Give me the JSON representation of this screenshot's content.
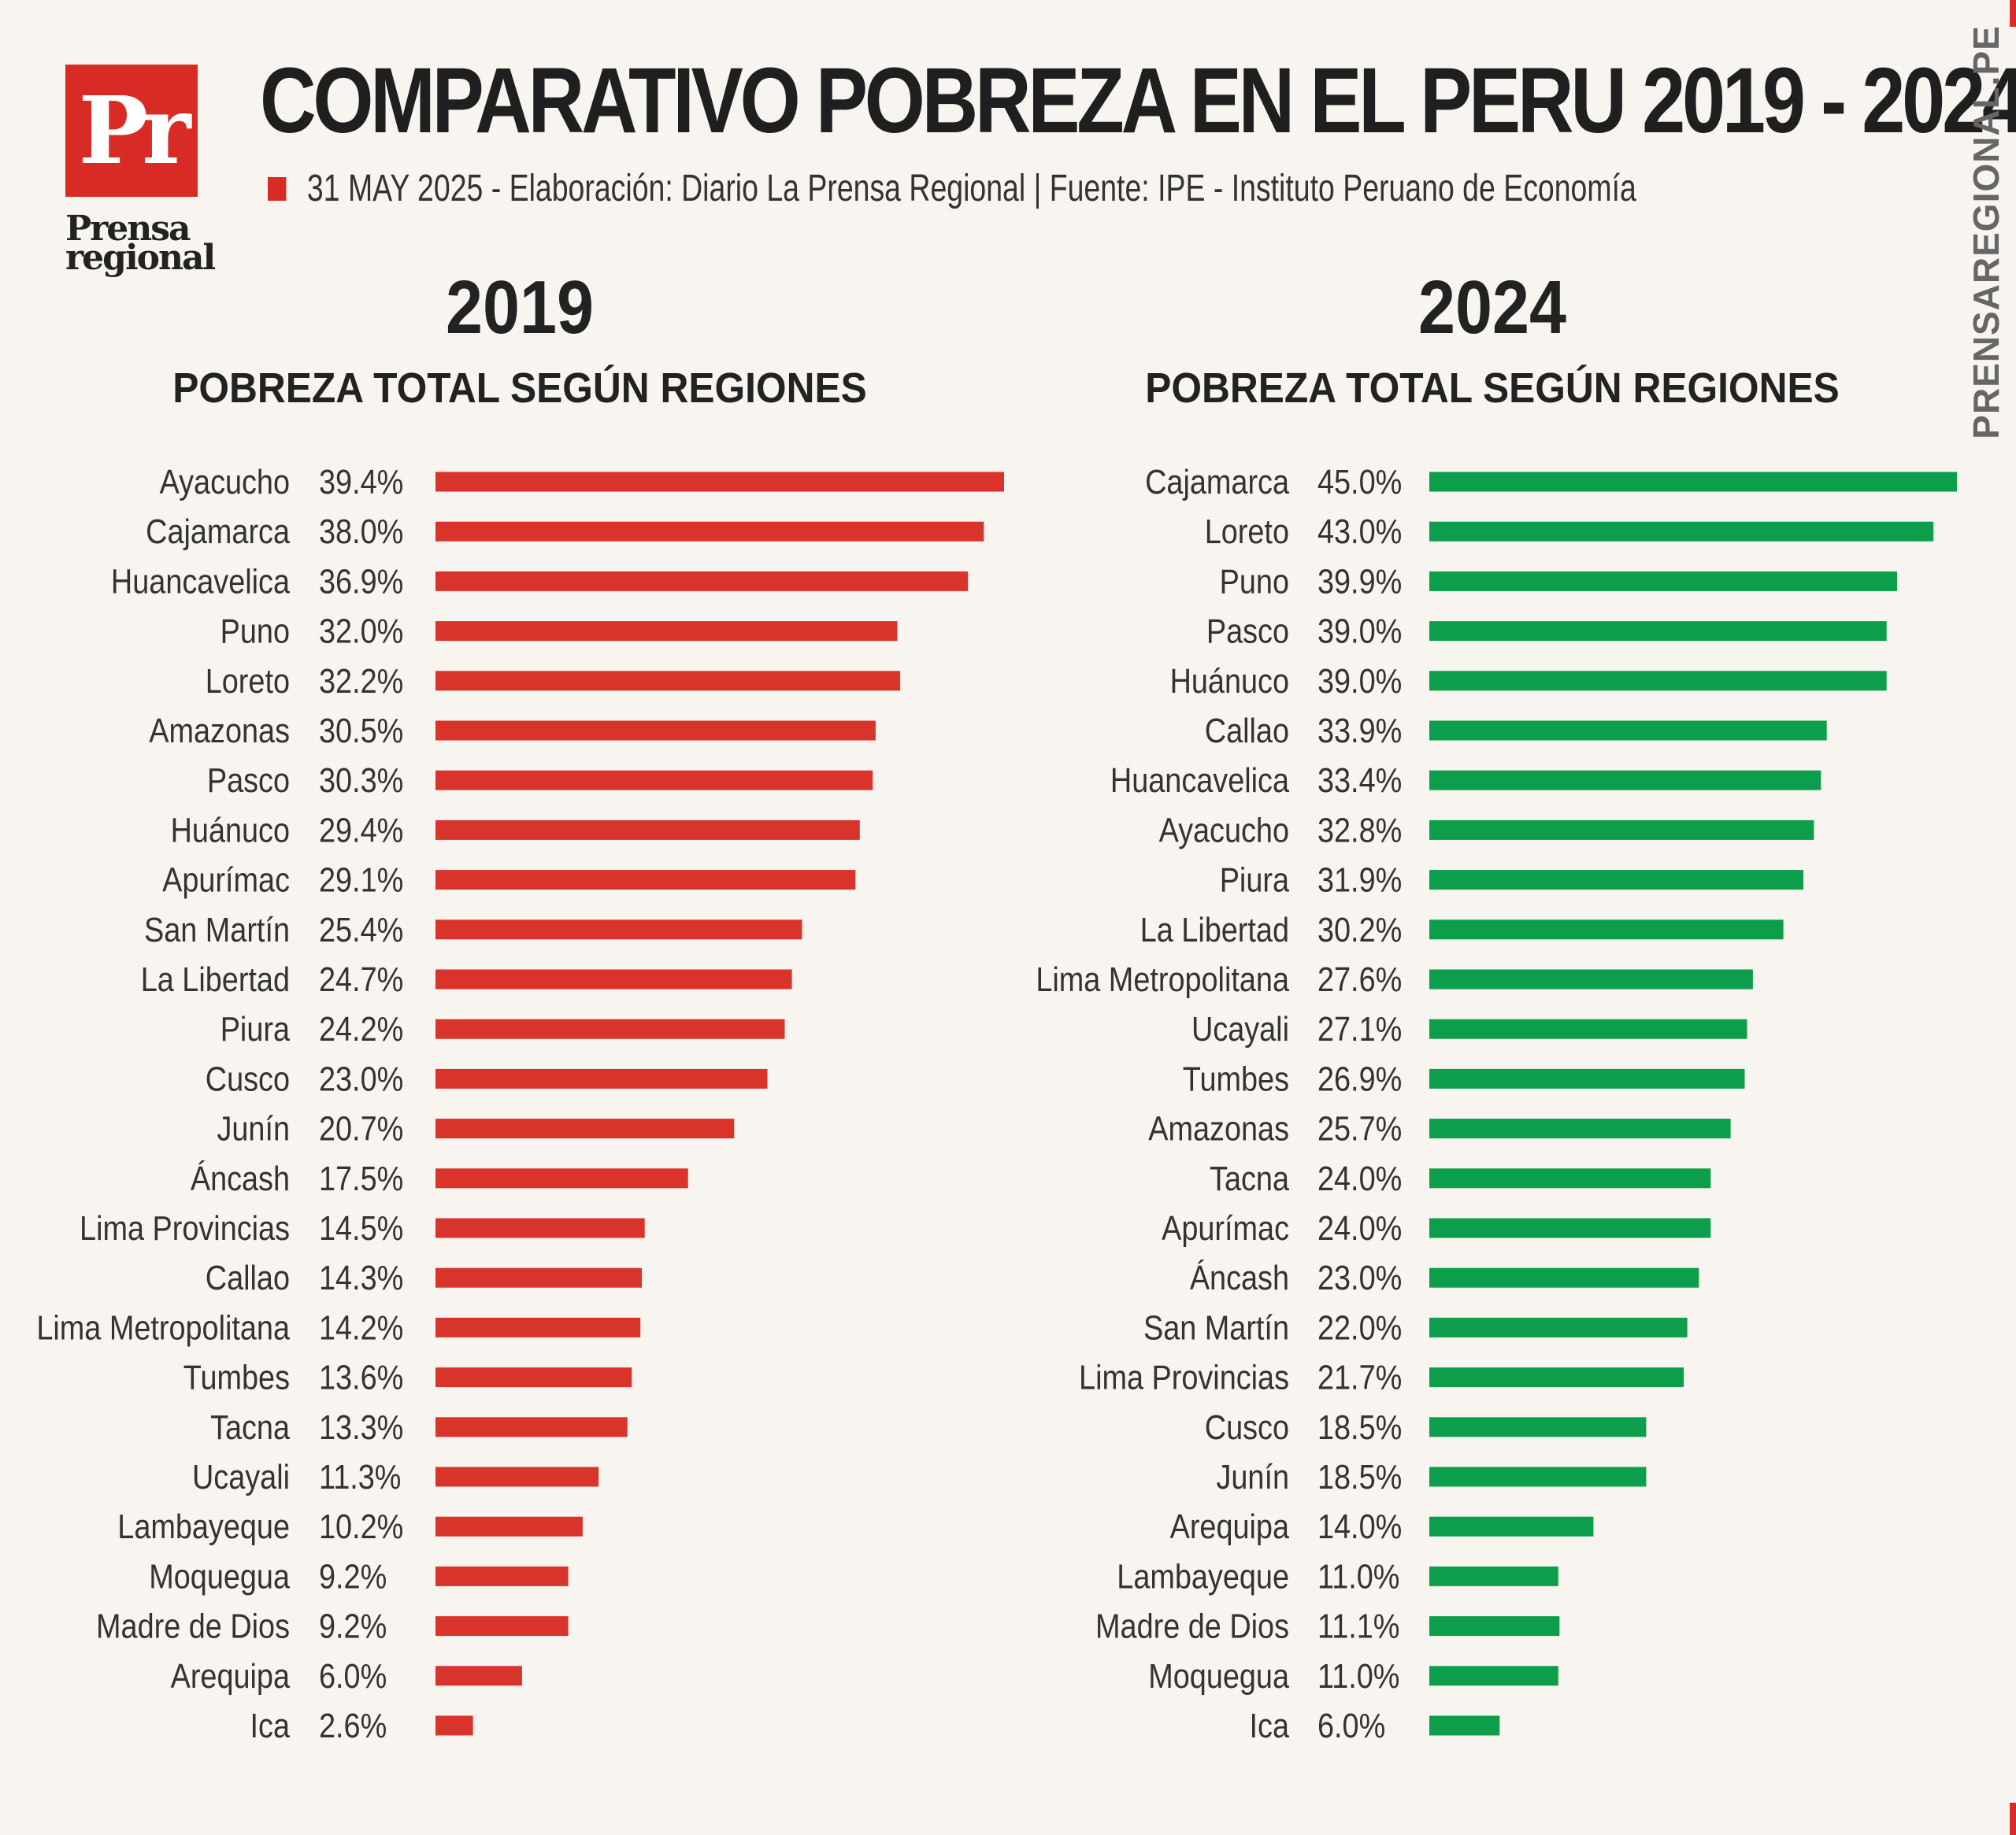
{
  "brand": {
    "logo_text": "Pr",
    "name": "Prensa regional",
    "site": "PRENSAREGIONAL.PE",
    "accent": "#d92b26"
  },
  "header": {
    "title": "COMPARATIVO POBREZA EN EL PERU 2019 - 2024",
    "subtitle": "31 MAY 2025 -  Elaboración: Diario La Prensa Regional | Fuente: IPE - Instituto Peruano de Economía"
  },
  "chart_data": [
    {
      "type": "bar",
      "orientation": "horizontal",
      "year": "2019",
      "title": "POBREZA TOTAL SEGÚN REGIONES",
      "color": "#d9342b",
      "categories": [
        "Ayacucho",
        "Cajamarca",
        "Huancavelica",
        "Puno",
        "Loreto",
        "Amazonas",
        "Pasco",
        "Huánuco",
        "Apurímac",
        "San Martín",
        "La Libertad",
        "Piura",
        "Cusco",
        "Junín",
        "Áncash",
        "Lima Provincias",
        "Callao",
        "Lima Metropolitana",
        "Tumbes",
        "Tacna",
        "Ucayali",
        "Lambayeque",
        "Moquegua",
        "Madre de Dios",
        "Arequipa",
        "Ica"
      ],
      "values": [
        39.4,
        38.0,
        36.9,
        32.0,
        32.2,
        30.5,
        30.3,
        29.4,
        29.1,
        25.4,
        24.7,
        24.2,
        23.0,
        20.7,
        17.5,
        14.5,
        14.3,
        14.2,
        13.6,
        13.3,
        11.3,
        10.2,
        9.2,
        9.2,
        6.0,
        2.6
      ],
      "value_labels": [
        "39.4%",
        "38.0%",
        "36.9%",
        "32.0%",
        "32.2%",
        "30.5%",
        "30.3%",
        "29.4%",
        "29.1%",
        "25.4%",
        "24.7%",
        "24.2%",
        "23.0%",
        "20.7%",
        "17.5%",
        "14.5%",
        "14.3%",
        "14.2%",
        "13.6%",
        "13.3%",
        "11.3%",
        "10.2%",
        "9.2%",
        "9.2%",
        "6.0%",
        "2.6%"
      ],
      "xlim": [
        0,
        40
      ],
      "grid": false,
      "legend": "none"
    },
    {
      "type": "bar",
      "orientation": "horizontal",
      "year": "2024",
      "title": "POBREZA TOTAL SEGÚN REGIONES",
      "color": "#0d9e4c",
      "categories": [
        "Cajamarca",
        "Loreto",
        "Puno",
        "Pasco",
        "Huánuco",
        "Callao",
        "Huancavelica",
        "Ayacucho",
        "Piura",
        "La Libertad",
        "Lima Metropolitana",
        "Ucayali",
        "Tumbes",
        "Amazonas",
        "Tacna",
        "Apurímac",
        "Áncash",
        "San Martín",
        "Lima Provincias",
        "Cusco",
        "Junín",
        "Arequipa",
        "Lambayeque",
        "Madre de Dios",
        "Moquegua",
        "Ica"
      ],
      "values": [
        45.0,
        43.0,
        39.9,
        39.0,
        39.0,
        33.9,
        33.4,
        32.8,
        31.9,
        30.2,
        27.6,
        27.1,
        26.9,
        25.7,
        24.0,
        24.0,
        23.0,
        22.0,
        21.7,
        18.5,
        18.5,
        14.0,
        11.0,
        11.1,
        11.0,
        6.0
      ],
      "value_labels": [
        "45.0%",
        "43.0%",
        "39.9%",
        "39.0%",
        "39.0%",
        "33.9%",
        "33.4%",
        "32.8%",
        "31.9%",
        "30.2%",
        "27.6%",
        "27.1%",
        "26.9%",
        "25.7%",
        "24.0%",
        "24.0%",
        "23.0%",
        "22.0%",
        "21.7%",
        "18.5%",
        "18.5%",
        "14.0%",
        "11.0%",
        "11.1%",
        "11.0%",
        "6.0%"
      ],
      "xlim": [
        0,
        45
      ],
      "grid": false,
      "legend": "none"
    }
  ]
}
